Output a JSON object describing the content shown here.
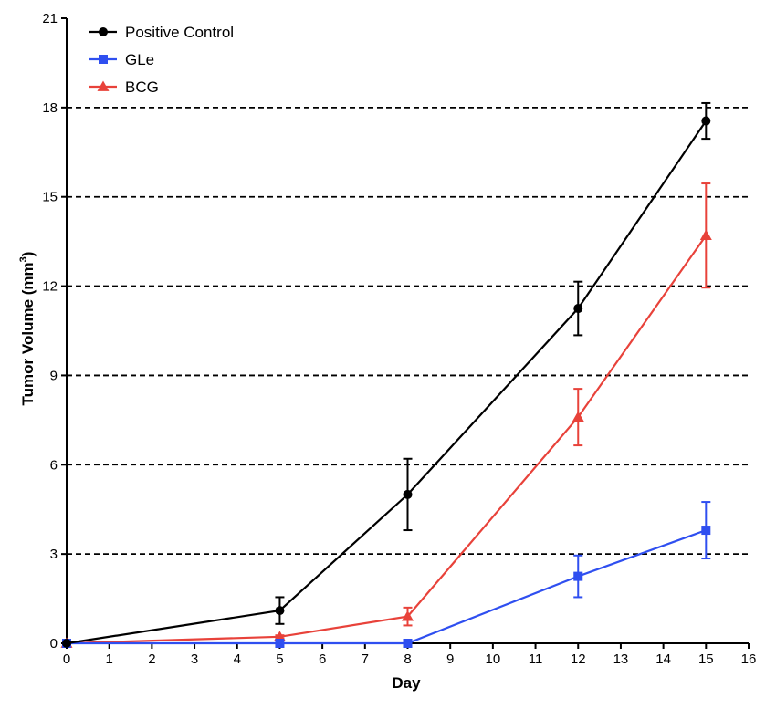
{
  "chart_data": {
    "type": "line",
    "title": "",
    "xlabel": "Day",
    "ylabel": "Tumor Volume (mm³)",
    "ylabel_main": "Tumor Volume (mm",
    "ylabel_sup": "3",
    "ylabel_close": ")",
    "xlim": [
      0,
      16
    ],
    "ylim": [
      0,
      21
    ],
    "x_ticks": [
      0,
      1,
      2,
      3,
      4,
      5,
      6,
      7,
      8,
      9,
      10,
      11,
      12,
      13,
      14,
      15,
      16
    ],
    "y_ticks": [
      0,
      3,
      6,
      9,
      12,
      15,
      18,
      21
    ],
    "grid": "horizontal-dashed",
    "legend_position": "top-left",
    "series": [
      {
        "name": "Positive Control",
        "color": "#000000",
        "marker": "circle",
        "x": [
          0,
          5,
          8,
          12,
          15
        ],
        "y": [
          0,
          1.1,
          5.0,
          11.25,
          17.55
        ],
        "err": [
          0,
          0.45,
          1.2,
          0.9,
          0.6
        ]
      },
      {
        "name": "GLe",
        "color": "#2f4ff0",
        "marker": "square",
        "x": [
          0,
          5,
          8,
          12,
          15
        ],
        "y": [
          0,
          0,
          0,
          2.25,
          3.8
        ],
        "err": [
          0,
          0,
          0,
          0.7,
          0.95
        ]
      },
      {
        "name": "BCG",
        "color": "#e8423a",
        "marker": "triangle",
        "x": [
          0,
          5,
          8,
          12,
          15
        ],
        "y": [
          0,
          0.22,
          0.9,
          7.6,
          13.7
        ],
        "err": [
          0,
          0.05,
          0.3,
          0.95,
          1.75
        ]
      }
    ]
  }
}
